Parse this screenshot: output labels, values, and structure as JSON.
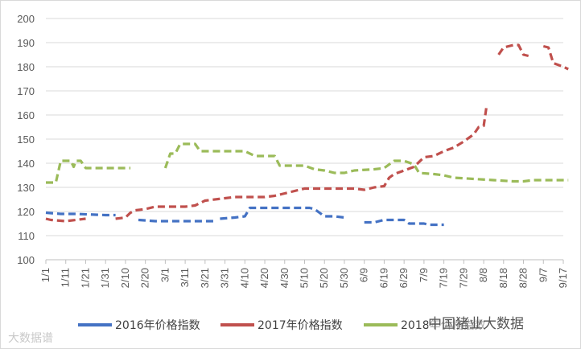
{
  "chart_data": {
    "type": "line",
    "ylim": [
      100,
      200
    ],
    "y_ticks": [
      100,
      110,
      120,
      130,
      140,
      150,
      160,
      170,
      180,
      190,
      200
    ],
    "categories": [
      "1/1",
      "1/11",
      "1/21",
      "1/31",
      "2/10",
      "2/20",
      "3/1",
      "3/11",
      "3/21",
      "3/31",
      "4/10",
      "4/20",
      "4/30",
      "5/10",
      "5/20",
      "5/30",
      "6/9",
      "6/19",
      "6/29",
      "7/9",
      "7/19",
      "7/29",
      "8/8",
      "8/18",
      "8/28",
      "9/7",
      "9/17"
    ],
    "grid": "horizontal",
    "legend_position": "bottom",
    "series": [
      {
        "name": "2016年价格指数",
        "color": "#4472c4",
        "points": [
          [
            0,
            119.5
          ],
          [
            1.5,
            119
          ],
          [
            3,
            119
          ],
          [
            6,
            118.5
          ],
          [
            7,
            118.5
          ],
          [
            9,
            118.5
          ],
          [
            9.3,
            116.5
          ],
          [
            11,
            116
          ],
          [
            15,
            116
          ],
          [
            17,
            116
          ],
          [
            17.5,
            117
          ],
          [
            19,
            117.5
          ],
          [
            20,
            118
          ],
          [
            20.5,
            121.5
          ],
          [
            21,
            121.5
          ],
          [
            25,
            121.5
          ],
          [
            26.5,
            121.5
          ],
          [
            27,
            121
          ],
          [
            27.5,
            119.5
          ],
          [
            28,
            118
          ],
          [
            29,
            118
          ],
          [
            30,
            117.5
          ],
          [
            30.5,
            115.5
          ],
          [
            31,
            115.5
          ],
          [
            32,
            115.5
          ],
          [
            33,
            115.5
          ],
          [
            34,
            116.5
          ],
          [
            36,
            116.5
          ],
          [
            36.5,
            115
          ],
          [
            38,
            115
          ],
          [
            38.5,
            114.5
          ],
          [
            40,
            114.5
          ]
        ],
        "breaks": [
          [
            7,
            2.5
          ],
          [
            17,
            1
          ],
          [
            30,
            0.8
          ],
          [
            31,
            1
          ]
        ]
      },
      {
        "name": "2017年价格指数",
        "color": "#c0504d",
        "points": [
          [
            0,
            117
          ],
          [
            0.5,
            116.5
          ],
          [
            2,
            116
          ],
          [
            3,
            116.5
          ],
          [
            4,
            117
          ],
          [
            7,
            117
          ],
          [
            8,
            117.5
          ],
          [
            8.5,
            119.5
          ],
          [
            9,
            120.5
          ],
          [
            10,
            121
          ],
          [
            11,
            122
          ],
          [
            14,
            122
          ],
          [
            15,
            122.5
          ],
          [
            16,
            124.5
          ],
          [
            18,
            125.5
          ],
          [
            19,
            126
          ],
          [
            22,
            126
          ],
          [
            23,
            126.5
          ],
          [
            24,
            127.5
          ],
          [
            25,
            128.5
          ],
          [
            26,
            129.5
          ],
          [
            30,
            129.5
          ],
          [
            31,
            129.5
          ],
          [
            32,
            129
          ],
          [
            33,
            130
          ],
          [
            34,
            130.5
          ],
          [
            34.5,
            134
          ],
          [
            35,
            135.5
          ],
          [
            36,
            137
          ],
          [
            37,
            138.5
          ],
          [
            38,
            142.5
          ],
          [
            39,
            143
          ],
          [
            40,
            145
          ],
          [
            41,
            146.5
          ],
          [
            42,
            149
          ],
          [
            43,
            152
          ],
          [
            43.5,
            155
          ],
          [
            44,
            155.5
          ],
          [
            44.3,
            164
          ],
          [
            45,
            164
          ],
          [
            45.5,
            185
          ],
          [
            46,
            188
          ],
          [
            47,
            189
          ],
          [
            47.5,
            189
          ],
          [
            48,
            185
          ],
          [
            48.5,
            184.5
          ],
          [
            49,
            183
          ],
          [
            50,
            188.5
          ],
          [
            50.5,
            188
          ],
          [
            51,
            181.5
          ],
          [
            52,
            180
          ],
          [
            52.5,
            179
          ]
        ],
        "breaks": [
          [
            4,
            3
          ],
          [
            44.3,
            1.2
          ],
          [
            48.5,
            1.3
          ]
        ]
      },
      {
        "name": "2018年价格指数",
        "color": "#9bbb59",
        "points": [
          [
            0,
            132
          ],
          [
            1,
            132
          ],
          [
            1.5,
            141
          ],
          [
            2.5,
            141
          ],
          [
            2.8,
            138.5
          ],
          [
            3,
            141
          ],
          [
            3.5,
            141
          ],
          [
            4,
            138
          ],
          [
            6,
            138
          ],
          [
            8,
            138
          ],
          [
            8.5,
            138
          ],
          [
            12,
            138
          ],
          [
            12.5,
            144
          ],
          [
            13,
            144
          ],
          [
            13.5,
            148
          ],
          [
            15,
            148
          ],
          [
            15.5,
            145
          ],
          [
            20,
            145
          ],
          [
            21,
            143
          ],
          [
            23,
            143
          ],
          [
            23.5,
            139
          ],
          [
            26,
            139
          ],
          [
            27,
            137.5
          ],
          [
            28,
            137
          ],
          [
            29,
            136
          ],
          [
            30,
            136
          ],
          [
            31,
            137
          ],
          [
            33,
            137.5
          ],
          [
            34,
            138
          ],
          [
            35,
            141
          ],
          [
            36,
            141
          ],
          [
            37,
            139.5
          ],
          [
            37.5,
            136
          ],
          [
            39,
            135.5
          ],
          [
            40,
            135
          ],
          [
            41,
            134
          ],
          [
            43,
            133.5
          ],
          [
            45,
            133
          ],
          [
            47,
            132.5
          ],
          [
            48,
            132.5
          ],
          [
            49,
            133
          ],
          [
            52.5,
            133
          ]
        ],
        "breaks": [
          [
            8.5,
            3.5
          ]
        ]
      }
    ]
  },
  "legend": [
    {
      "label": "2016年价格指数",
      "color": "#4472c4"
    },
    {
      "label": "2017年价格指数",
      "color": "#c0504d"
    },
    {
      "label": "2018年价格指数",
      "color": "#9bbb59"
    }
  ],
  "watermarks": {
    "left": "大数据谱",
    "right": "中国猪业大数据"
  }
}
